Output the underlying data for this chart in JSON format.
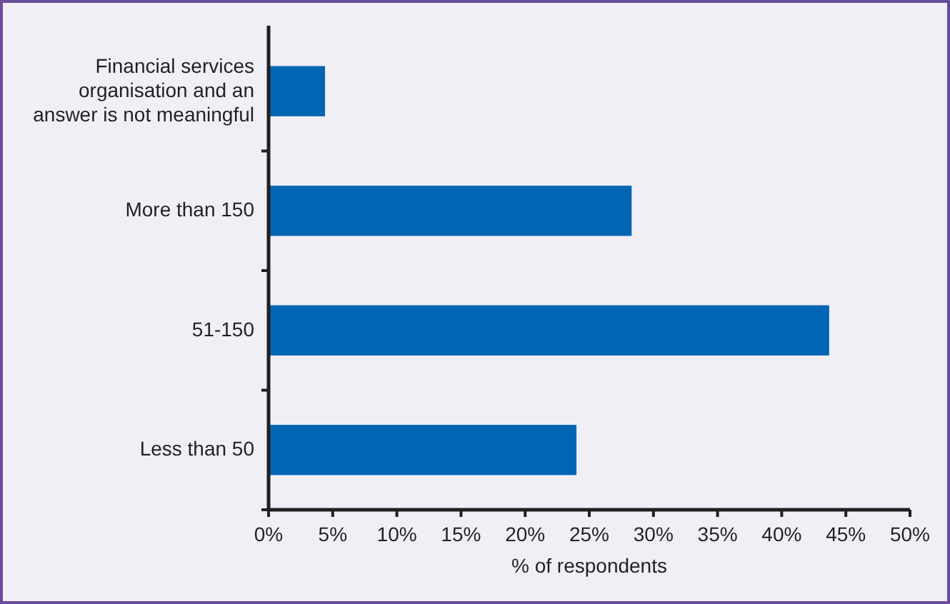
{
  "chart_data": {
    "type": "bar",
    "orientation": "horizontal",
    "xlabel": "% of respondents",
    "categories": [
      "Financial services organisation and an answer is not meaningful",
      "More than 150",
      "51-150",
      "Less than 50"
    ],
    "values": [
      4.4,
      28.3,
      43.7,
      24.0
    ],
    "color": "#0066b3",
    "xlim": [
      0,
      50
    ],
    "xticks": [
      {
        "value": 0,
        "label": "0%"
      },
      {
        "value": 5,
        "label": "5%"
      },
      {
        "value": 10,
        "label": "10%"
      },
      {
        "value": 15,
        "label": "15%"
      },
      {
        "value": 20,
        "label": "20%"
      },
      {
        "value": 25,
        "label": "25%"
      },
      {
        "value": 30,
        "label": "30%"
      },
      {
        "value": 35,
        "label": "35%"
      },
      {
        "value": 40,
        "label": "40%"
      },
      {
        "value": 45,
        "label": "45%"
      },
      {
        "value": 50,
        "label": "50%"
      }
    ],
    "data_labels": false
  }
}
